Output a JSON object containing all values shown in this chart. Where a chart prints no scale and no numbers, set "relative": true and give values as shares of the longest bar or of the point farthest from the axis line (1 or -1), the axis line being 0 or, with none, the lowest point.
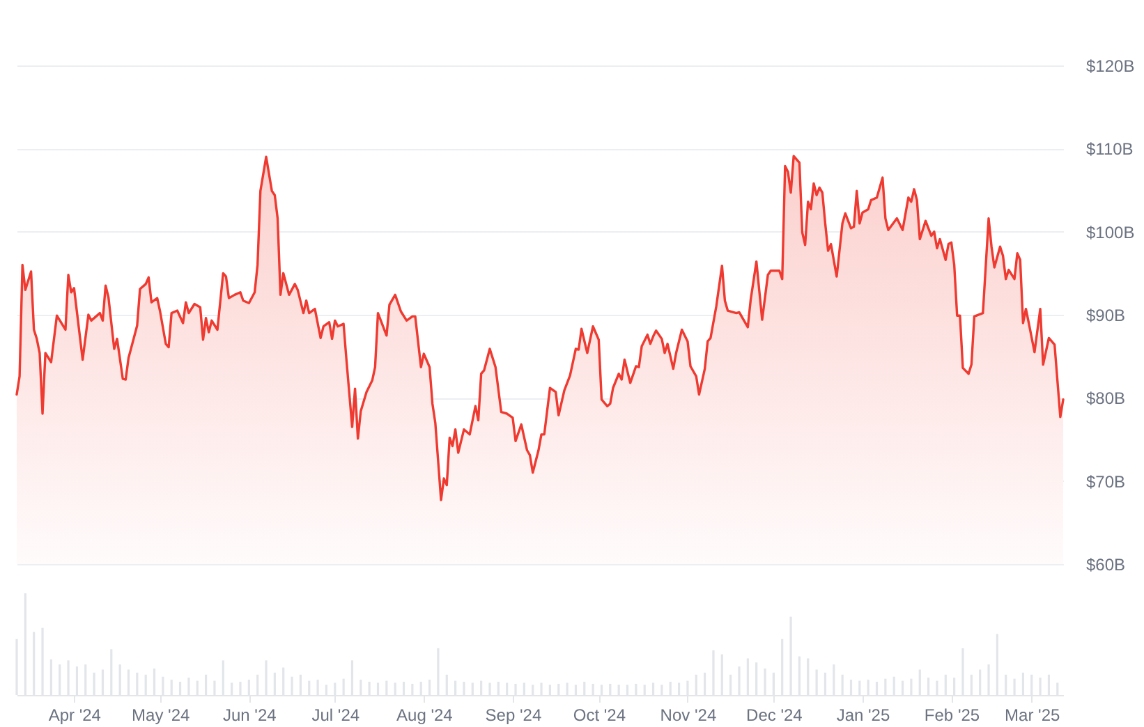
{
  "chart_data": [
    {
      "type": "area",
      "xlim": [
        "2024-03-12",
        "2025-03-12"
      ],
      "ylim": [
        60,
        120
      ],
      "yticks": [
        {
          "value": 60,
          "label": "$60B"
        },
        {
          "value": 70,
          "label": "$70B"
        },
        {
          "value": 80,
          "label": "$80B"
        },
        {
          "value": 90,
          "label": "$90B"
        },
        {
          "value": 100,
          "label": "$100B"
        },
        {
          "value": 110,
          "label": "$110B"
        },
        {
          "value": 120,
          "label": "$120B"
        }
      ],
      "grid": "y",
      "tick_labels": "y",
      "x": [
        "2024-03-12",
        "2024-03-13",
        "2024-03-14",
        "2024-03-15",
        "2024-03-17",
        "2024-03-18",
        "2024-03-19",
        "2024-03-20",
        "2024-03-21",
        "2024-03-22",
        "2024-03-24",
        "2024-03-26",
        "2024-03-29",
        "2024-03-30",
        "2024-03-31",
        "2024-04-01",
        "2024-04-04",
        "2024-04-06",
        "2024-04-07",
        "2024-04-10",
        "2024-04-11",
        "2024-04-12",
        "2024-04-13",
        "2024-04-15",
        "2024-04-16",
        "2024-04-18",
        "2024-04-19",
        "2024-04-20",
        "2024-04-23",
        "2024-04-24",
        "2024-04-26",
        "2024-04-27",
        "2024-04-28",
        "2024-04-30",
        "2024-05-01",
        "2024-05-03",
        "2024-05-04",
        "2024-05-05",
        "2024-05-07",
        "2024-05-09",
        "2024-05-10",
        "2024-05-11",
        "2024-05-13",
        "2024-05-15",
        "2024-05-16",
        "2024-05-17",
        "2024-05-18",
        "2024-05-19",
        "2024-05-21",
        "2024-05-23",
        "2024-05-24",
        "2024-05-25",
        "2024-05-27",
        "2024-05-29",
        "2024-05-30",
        "2024-06-01",
        "2024-06-03",
        "2024-06-04",
        "2024-06-05",
        "2024-06-07",
        "2024-06-09",
        "2024-06-10",
        "2024-06-11",
        "2024-06-12",
        "2024-06-13",
        "2024-06-15",
        "2024-06-17",
        "2024-06-18",
        "2024-06-20",
        "2024-06-21",
        "2024-06-22",
        "2024-06-24",
        "2024-06-26",
        "2024-06-27",
        "2024-06-29",
        "2024-06-30",
        "2024-07-01",
        "2024-07-02",
        "2024-07-04",
        "2024-07-05",
        "2024-07-07",
        "2024-07-08",
        "2024-07-09",
        "2024-07-10",
        "2024-07-12",
        "2024-07-14",
        "2024-07-15",
        "2024-07-16",
        "2024-07-19",
        "2024-07-20",
        "2024-07-22",
        "2024-07-24",
        "2024-07-26",
        "2024-07-28",
        "2024-07-29",
        "2024-07-31",
        "2024-08-01",
        "2024-08-03",
        "2024-08-04",
        "2024-08-05",
        "2024-08-07",
        "2024-08-08",
        "2024-08-09",
        "2024-08-10",
        "2024-08-11",
        "2024-08-12",
        "2024-08-13",
        "2024-08-15",
        "2024-08-17",
        "2024-08-19",
        "2024-08-20",
        "2024-08-21",
        "2024-08-22",
        "2024-08-24",
        "2024-08-26",
        "2024-08-28",
        "2024-08-30",
        "2024-09-01",
        "2024-09-02",
        "2024-09-04",
        "2024-09-06",
        "2024-09-07",
        "2024-09-08",
        "2024-09-10",
        "2024-09-11",
        "2024-09-12",
        "2024-09-14",
        "2024-09-16",
        "2024-09-17",
        "2024-09-19",
        "2024-09-21",
        "2024-09-23",
        "2024-09-24",
        "2024-09-25",
        "2024-09-27",
        "2024-09-29",
        "2024-10-01",
        "2024-10-02",
        "2024-10-04",
        "2024-10-05",
        "2024-10-06",
        "2024-10-08",
        "2024-10-09",
        "2024-10-10",
        "2024-10-12",
        "2024-10-14",
        "2024-10-15",
        "2024-10-16",
        "2024-10-18",
        "2024-10-19",
        "2024-10-20",
        "2024-10-21",
        "2024-10-23",
        "2024-10-24",
        "2024-10-25",
        "2024-10-27",
        "2024-10-28",
        "2024-10-30",
        "2024-11-01",
        "2024-11-02",
        "2024-11-04",
        "2024-11-05",
        "2024-11-07",
        "2024-11-08",
        "2024-11-09",
        "2024-11-11",
        "2024-11-13",
        "2024-11-14",
        "2024-11-15",
        "2024-11-18",
        "2024-11-19",
        "2024-11-22",
        "2024-11-23",
        "2024-11-25",
        "2024-11-27",
        "2024-11-29",
        "2024-11-30",
        "2024-12-03",
        "2024-12-04",
        "2024-12-05",
        "2024-12-06",
        "2024-12-07",
        "2024-12-08",
        "2024-12-10",
        "2024-12-11",
        "2024-12-12",
        "2024-12-13",
        "2024-12-14",
        "2024-12-15",
        "2024-12-16",
        "2024-12-17",
        "2024-12-18",
        "2024-12-19",
        "2024-12-20",
        "2024-12-21",
        "2024-12-23",
        "2024-12-25",
        "2024-12-26",
        "2024-12-28",
        "2024-12-29",
        "2024-12-30",
        "2024-12-31",
        "2025-01-01",
        "2025-01-03",
        "2025-01-04",
        "2025-01-06",
        "2025-01-08",
        "2025-01-09",
        "2025-01-10",
        "2025-01-13",
        "2025-01-15",
        "2025-01-17",
        "2025-01-18",
        "2025-01-19",
        "2025-01-20",
        "2025-01-21",
        "2025-01-23",
        "2025-01-25",
        "2025-01-26",
        "2025-01-27",
        "2025-01-28",
        "2025-01-30",
        "2025-01-31",
        "2025-02-01",
        "2025-02-02",
        "2025-02-03",
        "2025-02-04",
        "2025-02-05",
        "2025-02-07",
        "2025-02-08",
        "2025-02-09",
        "2025-02-12",
        "2025-02-14",
        "2025-02-15",
        "2025-02-16",
        "2025-02-18",
        "2025-02-19",
        "2025-02-20",
        "2025-02-21",
        "2025-02-23",
        "2025-02-24",
        "2025-02-25",
        "2025-02-26",
        "2025-02-27",
        "2025-02-28",
        "2025-03-02",
        "2025-03-04",
        "2025-03-05",
        "2025-03-07",
        "2025-03-09",
        "2025-03-11",
        "2025-03-12"
      ],
      "series": [
        {
          "color": "#ee3a30",
          "values": [
            80.4,
            82.6,
            96.0,
            93.0,
            95.2,
            88.2,
            87.1,
            85.4,
            78.1,
            85.4,
            84.3,
            89.9,
            88.2,
            94.8,
            92.7,
            93.2,
            84.6,
            90.0,
            89.3,
            90.2,
            89.3,
            93.5,
            92.1,
            85.9,
            87.1,
            82.3,
            82.2,
            84.8,
            88.7,
            93.1,
            93.7,
            94.5,
            91.5,
            92.0,
            90.4,
            86.5,
            86.1,
            90.2,
            90.5,
            89.0,
            91.5,
            90.2,
            91.3,
            90.9,
            87.0,
            89.6,
            87.9,
            89.3,
            88.2,
            95.0,
            94.6,
            92.0,
            92.4,
            92.7,
            91.7,
            91.4,
            92.7,
            96.0,
            104.9,
            109.0,
            104.9,
            104.4,
            101.6,
            92.4,
            95.0,
            92.4,
            93.7,
            93.0,
            90.2,
            91.7,
            90.2,
            90.7,
            87.2,
            88.6,
            89.1,
            87.1,
            89.3,
            88.6,
            88.9,
            84.6,
            76.5,
            81.1,
            75.1,
            78.4,
            80.7,
            82.1,
            83.7,
            90.2,
            87.5,
            91.2,
            92.4,
            90.4,
            89.3,
            89.8,
            89.8,
            83.7,
            85.3,
            83.7,
            79.3,
            77.0,
            67.7,
            70.3,
            69.5,
            75.2,
            74.2,
            76.2,
            73.4,
            76.2,
            75.6,
            79.0,
            77.3,
            82.9,
            83.3,
            85.9,
            83.7,
            78.3,
            78.1,
            77.6,
            74.8,
            76.8,
            73.7,
            73.1,
            71.0,
            73.7,
            75.6,
            75.6,
            81.2,
            80.7,
            77.9,
            80.9,
            82.7,
            85.9,
            85.8,
            88.3,
            85.4,
            88.6,
            87.0,
            79.8,
            79.0,
            79.3,
            81.2,
            82.9,
            82.2,
            84.6,
            81.8,
            83.8,
            83.7,
            86.2,
            87.6,
            86.5,
            87.4,
            88.1,
            87.1,
            85.4,
            86.5,
            83.5,
            85.4,
            88.2,
            86.8,
            83.8,
            82.6,
            80.4,
            83.5,
            86.8,
            87.2,
            91.0,
            95.9,
            91.7,
            90.5,
            90.2,
            90.3,
            88.5,
            91.8,
            96.4,
            89.4,
            94.8,
            95.3,
            95.3,
            94.3,
            107.9,
            107.2,
            104.7,
            109.1,
            108.3,
            99.9,
            98.4,
            103.6,
            102.7,
            105.8,
            104.4,
            105.3,
            104.7,
            101.0,
            97.7,
            98.5,
            94.6,
            101.0,
            102.2,
            100.4,
            100.6,
            104.9,
            101.0,
            102.3,
            102.7,
            103.8,
            104.1,
            106.5,
            101.6,
            100.2,
            101.6,
            100.2,
            104.1,
            103.6,
            105.1,
            103.8,
            99.1,
            101.3,
            99.5,
            100.0,
            98.0,
            99.1,
            96.6,
            98.5,
            98.7,
            96.0,
            89.9,
            89.9,
            83.6,
            82.9,
            84.0,
            89.8,
            90.2,
            101.6,
            98.2,
            95.7,
            98.2,
            97.1,
            94.3,
            95.4,
            94.3,
            97.4,
            96.6,
            89.0,
            90.7,
            89.0,
            85.5,
            90.7,
            84.0,
            87.2,
            86.4,
            77.7,
            79.8
          ]
        }
      ]
    },
    {
      "type": "bar",
      "relative": true,
      "color": "#e2e5e9",
      "tick_labels": "x",
      "xlim": [
        "2024-03-12",
        "2025-03-12"
      ],
      "xticks": [
        {
          "value": "2024-04-01",
          "label": "Apr '24"
        },
        {
          "value": "2024-05-01",
          "label": "May '24"
        },
        {
          "value": "2024-06-01",
          "label": "Jun '24"
        },
        {
          "value": "2024-07-01",
          "label": "Jul '24"
        },
        {
          "value": "2024-08-01",
          "label": "Aug '24"
        },
        {
          "value": "2024-09-01",
          "label": "Sep '24"
        },
        {
          "value": "2024-10-01",
          "label": "Oct '24"
        },
        {
          "value": "2024-11-01",
          "label": "Nov '24"
        },
        {
          "value": "2024-12-01",
          "label": "Dec '24"
        },
        {
          "value": "2025-01-01",
          "label": "Jan '25"
        },
        {
          "value": "2025-02-01",
          "label": "Feb '25"
        },
        {
          "value": "2025-03-01",
          "label": "Mar '25"
        }
      ],
      "x": [
        "2024-03-12",
        "2024-03-15",
        "2024-03-18",
        "2024-03-21",
        "2024-03-24",
        "2024-03-27",
        "2024-03-30",
        "2024-04-02",
        "2024-04-05",
        "2024-04-08",
        "2024-04-11",
        "2024-04-14",
        "2024-04-17",
        "2024-04-20",
        "2024-04-23",
        "2024-04-26",
        "2024-04-29",
        "2024-05-02",
        "2024-05-05",
        "2024-05-08",
        "2024-05-11",
        "2024-05-14",
        "2024-05-17",
        "2024-05-20",
        "2024-05-23",
        "2024-05-26",
        "2024-05-29",
        "2024-06-01",
        "2024-06-04",
        "2024-06-07",
        "2024-06-10",
        "2024-06-13",
        "2024-06-16",
        "2024-06-19",
        "2024-06-22",
        "2024-06-25",
        "2024-06-28",
        "2024-07-01",
        "2024-07-04",
        "2024-07-07",
        "2024-07-10",
        "2024-07-13",
        "2024-07-16",
        "2024-07-19",
        "2024-07-22",
        "2024-07-25",
        "2024-07-28",
        "2024-07-31",
        "2024-08-03",
        "2024-08-06",
        "2024-08-09",
        "2024-08-12",
        "2024-08-15",
        "2024-08-18",
        "2024-08-21",
        "2024-08-24",
        "2024-08-27",
        "2024-08-30",
        "2024-09-02",
        "2024-09-05",
        "2024-09-08",
        "2024-09-11",
        "2024-09-14",
        "2024-09-17",
        "2024-09-20",
        "2024-09-23",
        "2024-09-26",
        "2024-09-29",
        "2024-10-02",
        "2024-10-05",
        "2024-10-08",
        "2024-10-11",
        "2024-10-14",
        "2024-10-17",
        "2024-10-20",
        "2024-10-23",
        "2024-10-26",
        "2024-10-29",
        "2024-11-01",
        "2024-11-04",
        "2024-11-07",
        "2024-11-10",
        "2024-11-13",
        "2024-11-16",
        "2024-11-19",
        "2024-11-22",
        "2024-11-25",
        "2024-11-28",
        "2024-12-01",
        "2024-12-04",
        "2024-12-07",
        "2024-12-10",
        "2024-12-13",
        "2024-12-16",
        "2024-12-19",
        "2024-12-22",
        "2024-12-25",
        "2024-12-28",
        "2024-12-31",
        "2025-01-03",
        "2025-01-06",
        "2025-01-09",
        "2025-01-12",
        "2025-01-15",
        "2025-01-18",
        "2025-01-21",
        "2025-01-24",
        "2025-01-27",
        "2025-01-30",
        "2025-02-02",
        "2025-02-05",
        "2025-02-08",
        "2025-02-11",
        "2025-02-14",
        "2025-02-17",
        "2025-02-20",
        "2025-02-23",
        "2025-02-26",
        "2025-03-01",
        "2025-03-04",
        "2025-03-07",
        "2025-03-10"
      ],
      "values": [
        0.55,
        1.0,
        0.62,
        0.66,
        0.35,
        0.3,
        0.34,
        0.28,
        0.3,
        0.22,
        0.25,
        0.45,
        0.3,
        0.25,
        0.22,
        0.2,
        0.26,
        0.18,
        0.15,
        0.13,
        0.17,
        0.14,
        0.2,
        0.14,
        0.34,
        0.12,
        0.13,
        0.15,
        0.2,
        0.34,
        0.22,
        0.27,
        0.18,
        0.2,
        0.14,
        0.15,
        0.1,
        0.12,
        0.16,
        0.34,
        0.15,
        0.13,
        0.12,
        0.14,
        0.12,
        0.13,
        0.11,
        0.13,
        0.15,
        0.46,
        0.2,
        0.14,
        0.13,
        0.12,
        0.14,
        0.12,
        0.13,
        0.12,
        0.11,
        0.12,
        0.1,
        0.12,
        0.1,
        0.11,
        0.12,
        0.1,
        0.13,
        0.11,
        0.1,
        0.11,
        0.1,
        0.1,
        0.11,
        0.1,
        0.12,
        0.1,
        0.13,
        0.12,
        0.14,
        0.2,
        0.22,
        0.44,
        0.4,
        0.2,
        0.28,
        0.36,
        0.32,
        0.26,
        0.22,
        0.55,
        0.77,
        0.38,
        0.36,
        0.25,
        0.22,
        0.3,
        0.2,
        0.15,
        0.14,
        0.15,
        0.13,
        0.16,
        0.18,
        0.14,
        0.16,
        0.25,
        0.17,
        0.14,
        0.2,
        0.17,
        0.46,
        0.2,
        0.25,
        0.3,
        0.6,
        0.2,
        0.16,
        0.22,
        0.2,
        0.17,
        0.2,
        0.12
      ]
    }
  ]
}
